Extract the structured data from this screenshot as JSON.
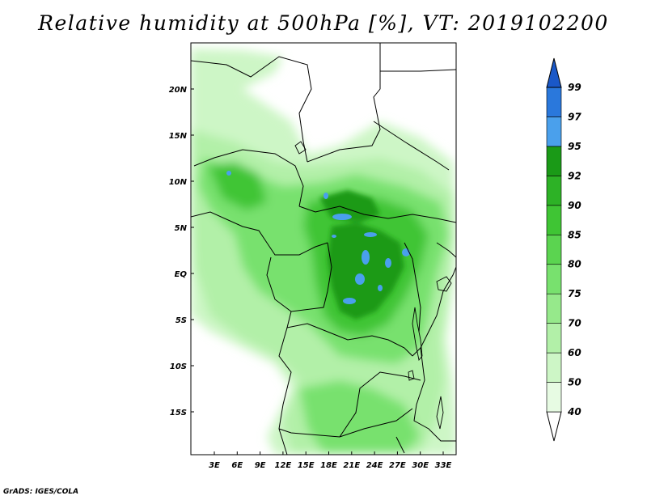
{
  "title": "Relative humidity at 500hPa [%], VT: 2019102200",
  "credit": "GrADS: IGES/COLA",
  "map": {
    "lat_labels": [
      "20N",
      "15N",
      "10N",
      "5N",
      "EQ",
      "5S",
      "10S",
      "15S"
    ],
    "lon_labels": [
      "3E",
      "6E",
      "9E",
      "12E",
      "15E",
      "18E",
      "21E",
      "24E",
      "27E",
      "30E",
      "33E"
    ]
  },
  "colorbar": {
    "labels": [
      "40",
      "50",
      "60",
      "70",
      "75",
      "80",
      "85",
      "90",
      "92",
      "95",
      "97",
      "99"
    ],
    "colors": [
      "#ffffff",
      "#e7fbe3",
      "#cdf6c6",
      "#b2f0a8",
      "#96e98b",
      "#78e16e",
      "#5bd450",
      "#3fc534",
      "#2db226",
      "#1a9a17",
      "#4aa0ec",
      "#2a78dc",
      "#1a58c8"
    ]
  }
}
